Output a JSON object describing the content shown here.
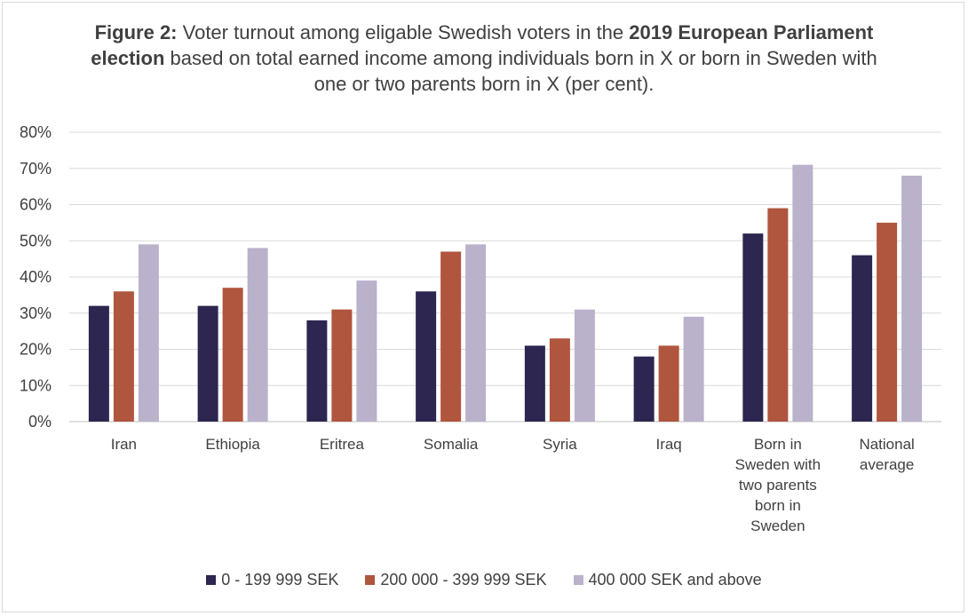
{
  "title": {
    "prefix_bold": "Figure 2:",
    "part1": " Voter turnout among eligable Swedish voters in the ",
    "bold_mid": "2019 European Parliament election",
    "part2": " based on total earned income among individuals born in X or born in Sweden with one or two parents born in X (per cent)."
  },
  "colors": {
    "s0": "#2c2650",
    "s1": "#b0553e",
    "s2": "#bab1cb",
    "grid": "#d9d9d9",
    "text": "#404040"
  },
  "chart_data": {
    "type": "bar",
    "title": "Figure 2: Voter turnout among eligable Swedish voters in the 2019 European Parliament election based on total earned income among individuals born in X or born in Sweden with one or two parents born in X (per cent).",
    "categories": [
      [
        "Iran"
      ],
      [
        "Ethiopia"
      ],
      [
        "Eritrea"
      ],
      [
        "Somalia"
      ],
      [
        "Syria"
      ],
      [
        "Iraq"
      ],
      [
        "Born in",
        "Sweden with",
        "two parents",
        "born in",
        "Sweden"
      ],
      [
        "National",
        "average"
      ]
    ],
    "series": [
      {
        "name": "0 - 199 999 SEK",
        "values": [
          32,
          32,
          28,
          36,
          21,
          18,
          52,
          46
        ]
      },
      {
        "name": "200 000 - 399 999 SEK",
        "values": [
          36,
          37,
          31,
          47,
          23,
          21,
          59,
          55
        ]
      },
      {
        "name": "400 000 SEK and above",
        "values": [
          49,
          48,
          39,
          49,
          31,
          29,
          71,
          68
        ]
      }
    ],
    "yticks": [
      "0%",
      "10%",
      "20%",
      "30%",
      "40%",
      "50%",
      "60%",
      "70%",
      "80%"
    ],
    "ylim": [
      0,
      80
    ],
    "xlabel": "",
    "ylabel": "",
    "grid": true,
    "legend_position": "bottom"
  }
}
